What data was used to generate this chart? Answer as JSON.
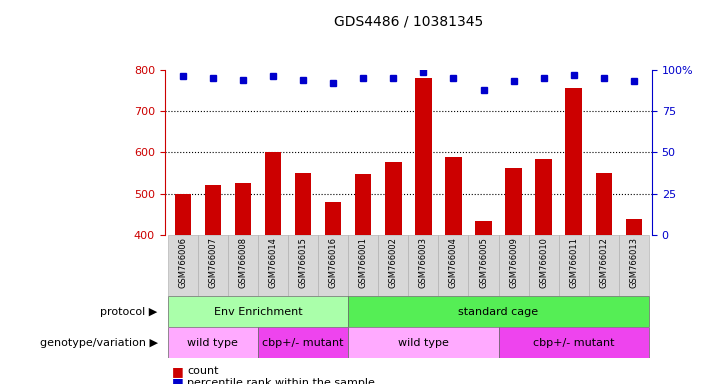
{
  "title": "GDS4486 / 10381345",
  "samples": [
    "GSM766006",
    "GSM766007",
    "GSM766008",
    "GSM766014",
    "GSM766015",
    "GSM766016",
    "GSM766001",
    "GSM766002",
    "GSM766003",
    "GSM766004",
    "GSM766005",
    "GSM766009",
    "GSM766010",
    "GSM766011",
    "GSM766012",
    "GSM766013"
  ],
  "counts": [
    500,
    520,
    525,
    600,
    550,
    480,
    548,
    578,
    780,
    590,
    435,
    562,
    585,
    755,
    550,
    438
  ],
  "percentiles": [
    96,
    95,
    94,
    96,
    94,
    92,
    95,
    95,
    99,
    95,
    88,
    93,
    95,
    97,
    95,
    93
  ],
  "bar_color": "#cc0000",
  "dot_color": "#0000cc",
  "ylim_left": [
    400,
    800
  ],
  "ylim_right": [
    0,
    100
  ],
  "yticks_left": [
    400,
    500,
    600,
    700,
    800
  ],
  "yticks_right": [
    0,
    25,
    50,
    75,
    100
  ],
  "bar_bottom": 400,
  "protocol_groups": [
    {
      "label": "Env Enrichment",
      "start": 0,
      "end": 6,
      "color": "#aaffaa"
    },
    {
      "label": "standard cage",
      "start": 6,
      "end": 16,
      "color": "#55ee55"
    }
  ],
  "genotype_groups": [
    {
      "label": "wild type",
      "start": 0,
      "end": 3,
      "color": "#ffaaff"
    },
    {
      "label": "cbp+/- mutant",
      "start": 3,
      "end": 6,
      "color": "#ee44ee"
    },
    {
      "label": "wild type",
      "start": 6,
      "end": 11,
      "color": "#ffaaff"
    },
    {
      "label": "cbp+/- mutant",
      "start": 11,
      "end": 16,
      "color": "#ee44ee"
    }
  ],
  "left_label_protocol": "protocol",
  "left_label_genotype": "genotype/variation",
  "legend_count": "count",
  "legend_percentile": "percentile rank within the sample",
  "title_fontsize": 10,
  "tick_fontsize": 8,
  "label_fontsize": 8,
  "sample_fontsize": 6
}
